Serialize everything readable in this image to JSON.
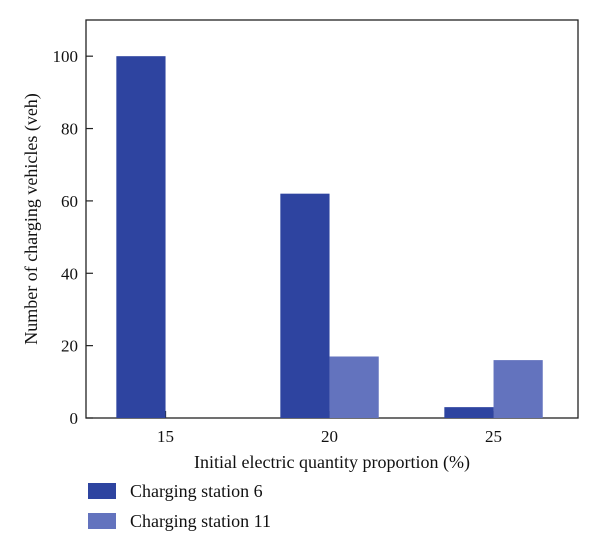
{
  "chart_data": {
    "type": "bar",
    "xlabel": "Initial electric quantity proportion (%)",
    "ylabel": "Number of charging vehicles (veh)",
    "categories": [
      "15",
      "20",
      "25"
    ],
    "yticks": [
      0,
      20,
      40,
      60,
      80,
      100
    ],
    "ylim": [
      0,
      110
    ],
    "grid": false,
    "legend_position": "bottom-left",
    "series": [
      {
        "name": "Charging station 6",
        "color": "#2e44a0",
        "values": [
          100,
          62,
          3
        ]
      },
      {
        "name": "Charging station 11",
        "color": "#6373be",
        "values": [
          0,
          17,
          16
        ]
      }
    ]
  }
}
